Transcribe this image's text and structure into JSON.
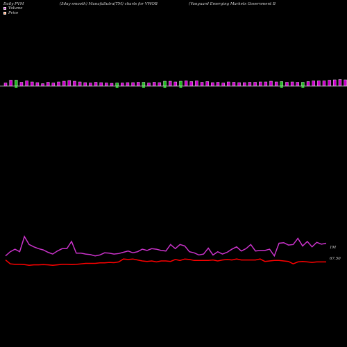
{
  "header": {
    "left": "Daily PVM",
    "middle": "(5day smooth) MunafaSutra(TM) charts for VWOB",
    "right": "(Vanguard Emerging Markets Government B"
  },
  "legend": [
    {
      "label": "Volume",
      "color": "#cc33cc"
    },
    {
      "label": "Price",
      "color": "#ff9966"
    }
  ],
  "colors": {
    "volume_up": "#cc00cc",
    "volume_down": "#22bb22",
    "volume_line": "#cc33cc",
    "price_line": "#ff0000",
    "baseline": "#cfcfcf",
    "background": "#000000"
  },
  "chart_data": [
    {
      "type": "bar",
      "title": "Volume",
      "series": [
        {
          "name": "Volume",
          "values": [
            0.45,
            0.85,
            0.85,
            0.55,
            0.75,
            0.6,
            0.5,
            0.35,
            0.55,
            0.45,
            0.6,
            0.7,
            0.8,
            0.7,
            0.6,
            0.5,
            0.45,
            0.55,
            0.5,
            0.45,
            0.4,
            0.45,
            0.45,
            0.5,
            0.5,
            0.55,
            0.55,
            0.45,
            0.55,
            0.5,
            0.7,
            0.7,
            0.6,
            0.7,
            0.75,
            0.65,
            0.75,
            0.55,
            0.65,
            0.5,
            0.55,
            0.45,
            0.6,
            0.55,
            0.5,
            0.5,
            0.55,
            0.55,
            0.6,
            0.6,
            0.7,
            0.6,
            0.65,
            0.55,
            0.6,
            0.55,
            0.55,
            0.65,
            0.75,
            0.75,
            0.75,
            0.85,
            0.9,
            0.95,
            0.9,
            0.9,
            0.9
          ]
        }
      ],
      "down_days": [
        2,
        21,
        26,
        30,
        33,
        52,
        56
      ]
    },
    {
      "type": "line",
      "axis_labels": {
        "volume": "1M",
        "price": "67.50"
      },
      "series": [
        {
          "name": "Volume",
          "values": [
            0.55,
            0.78,
            0.92,
            0.78,
            1.62,
            1.18,
            1.05,
            0.95,
            0.88,
            0.75,
            0.65,
            0.82,
            0.95,
            0.95,
            1.35,
            0.7,
            0.7,
            0.65,
            0.62,
            0.55,
            0.6,
            0.72,
            0.7,
            0.65,
            0.68,
            0.75,
            0.82,
            0.72,
            0.78,
            0.92,
            0.85,
            0.95,
            0.92,
            0.85,
            0.82,
            1.18,
            0.95,
            1.18,
            1.1,
            0.78,
            0.72,
            0.6,
            0.65,
            0.98,
            0.6,
            0.78,
            0.65,
            0.75,
            0.92,
            1.05,
            0.82,
            0.95,
            1.18,
            0.82,
            0.85,
            0.85,
            0.92,
            0.55,
            1.25,
            1.28,
            1.15,
            1.18,
            1.52,
            1.1,
            1.35,
            1.05,
            1.3,
            1.2,
            1.25
          ]
        },
        {
          "name": "Price",
          "values": [
            67.44,
            67.28,
            67.26,
            67.26,
            67.25,
            67.22,
            67.24,
            67.24,
            67.25,
            67.24,
            67.22,
            67.24,
            67.26,
            67.26,
            67.25,
            67.26,
            67.28,
            67.3,
            67.3,
            67.3,
            67.32,
            67.32,
            67.34,
            67.33,
            67.36,
            67.48,
            67.46,
            67.48,
            67.44,
            67.4,
            67.38,
            67.4,
            67.36,
            67.4,
            67.4,
            67.38,
            67.46,
            67.42,
            67.48,
            67.46,
            67.42,
            67.42,
            67.42,
            67.42,
            67.44,
            67.4,
            67.44,
            67.46,
            67.44,
            67.48,
            67.44,
            67.44,
            67.44,
            67.44,
            67.48,
            67.38,
            67.4,
            67.42,
            67.42,
            67.4,
            67.38,
            67.28,
            67.36,
            67.38,
            67.36,
            67.34,
            67.36,
            67.36,
            67.36
          ]
        }
      ]
    }
  ]
}
